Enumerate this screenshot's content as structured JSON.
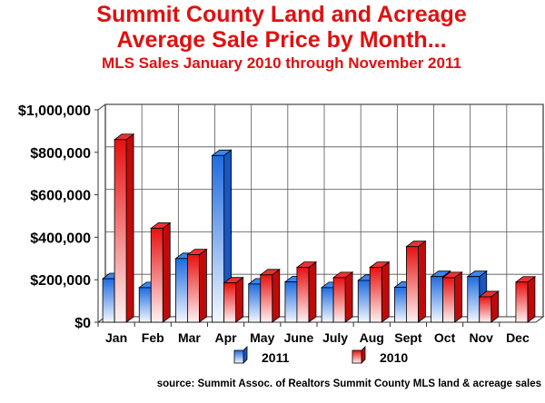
{
  "title_line1": "Summit County Land and Acreage",
  "title_line2": "Average Sale Price by Month...",
  "subtitle": "MLS Sales January 2010 through November 2011",
  "source": "source: Summit Assoc. of Realtors Summit County MLS land & acreage sales",
  "chart_data": {
    "type": "bar",
    "title": "Summit County Land and Acreage Average Sale Price by Month...",
    "subtitle": "MLS Sales January 2010 through November 2011",
    "categories": [
      "Jan",
      "Feb",
      "Mar",
      "Apr",
      "May",
      "June",
      "July",
      "Aug",
      "Sept",
      "Oct",
      "Nov",
      "Dec"
    ],
    "series": [
      {
        "name": "2011",
        "color": "#1f6be0",
        "values": [
          205000,
          163000,
          300000,
          785000,
          180000,
          190000,
          163000,
          197000,
          165000,
          215000,
          215000,
          null
        ]
      },
      {
        "name": "2010",
        "color": "#e81010",
        "values": [
          860000,
          442000,
          318000,
          185000,
          223000,
          258000,
          210000,
          258000,
          356000,
          210000,
          120000,
          189000
        ]
      }
    ],
    "ylim": [
      0,
      1000000
    ],
    "yticks": [
      "$0",
      "$200,000",
      "$400,000",
      "$600,000",
      "$800,000",
      "$1,000,000"
    ],
    "grid": true,
    "legend": "bottom",
    "style": "3d-gradient"
  }
}
